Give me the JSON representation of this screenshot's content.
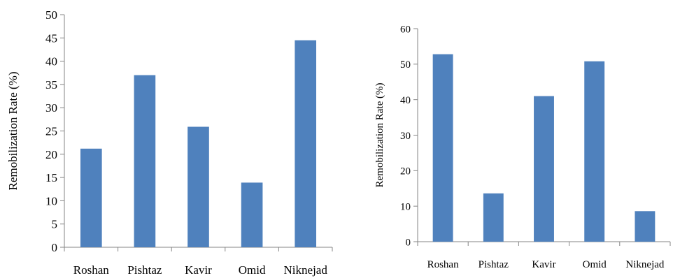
{
  "chart_data": [
    {
      "type": "bar",
      "categories": [
        "Roshan",
        "Pishtaz",
        "Kavir",
        "Omid",
        "Niknejad"
      ],
      "values": [
        21.2,
        37.0,
        25.9,
        13.9,
        44.5
      ],
      "ylabel": "Remobilization Rate (%)",
      "xlabel": "",
      "ylim": [
        0,
        50
      ],
      "yticks": [
        0,
        5,
        10,
        15,
        20,
        25,
        30,
        35,
        40,
        45,
        50
      ],
      "grid": false,
      "bar_color": "#4f81bd"
    },
    {
      "type": "bar",
      "categories": [
        "Roshan",
        "Pishtaz",
        "Kavir",
        "Omid",
        "Niknejad"
      ],
      "values": [
        52.8,
        13.6,
        41.0,
        50.8,
        8.6
      ],
      "ylabel": "Remobilization Rate (%)",
      "xlabel": "",
      "ylim": [
        0,
        60
      ],
      "yticks": [
        0,
        10,
        20,
        30,
        40,
        50,
        60
      ],
      "grid": false,
      "bar_color": "#4f81bd"
    }
  ]
}
